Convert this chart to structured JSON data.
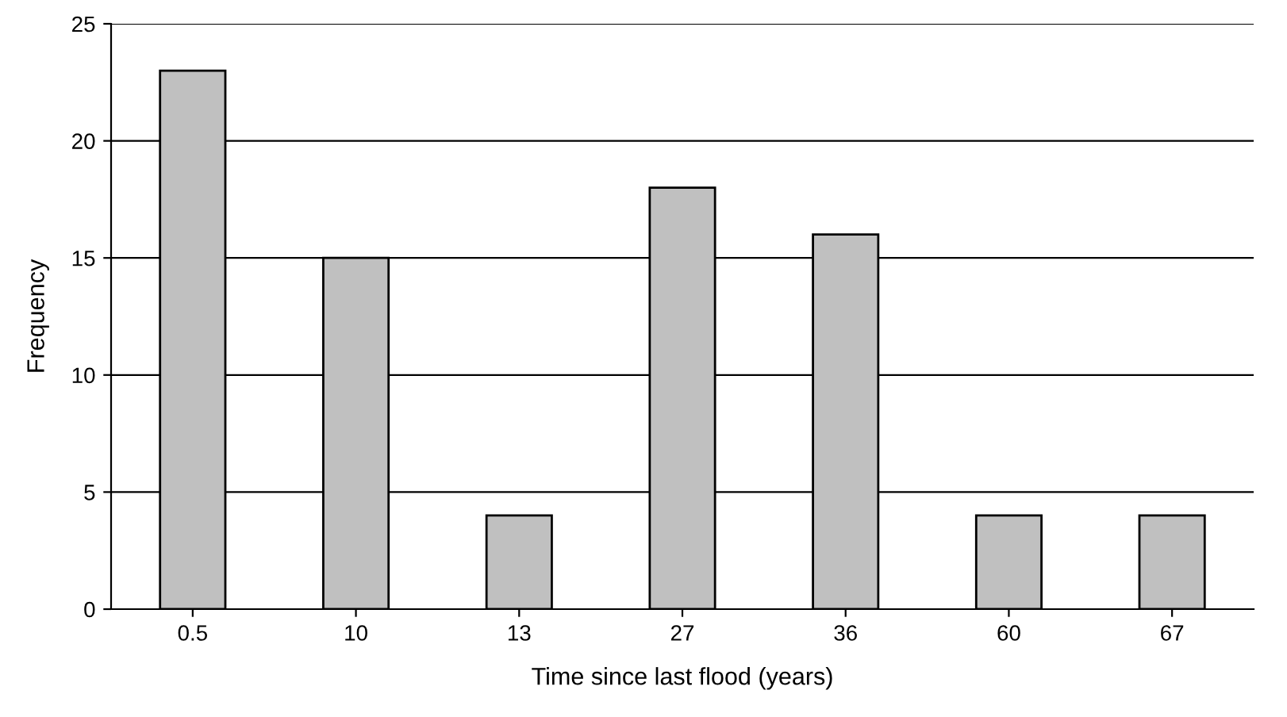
{
  "chart_data": {
    "type": "bar",
    "xlabel": "Time since last flood (years)",
    "ylabel": "Frequency",
    "categories": [
      "0.5",
      "10",
      "13",
      "27",
      "36",
      "60",
      "67"
    ],
    "values": [
      23,
      15,
      4,
      18,
      16,
      4,
      4
    ],
    "color": "#c0c0c0",
    "ylim": [
      0,
      25
    ],
    "yticks": [
      0,
      5,
      10,
      15,
      20,
      25
    ],
    "grid": "y"
  }
}
